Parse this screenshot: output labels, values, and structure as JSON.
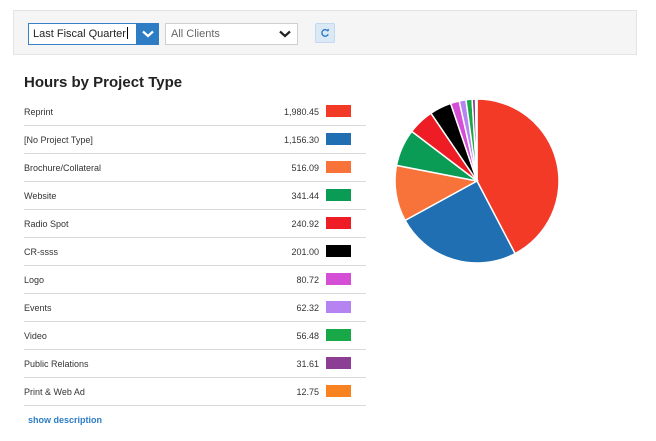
{
  "filters": {
    "period_value": "Last Fiscal Quarter",
    "clients_value": "All Clients"
  },
  "title": "Hours by Project Type",
  "show_description": "show description",
  "chart_data": {
    "type": "pie",
    "title": "Hours by Project Type",
    "categories": [
      "Reprint",
      "[No Project Type]",
      "Brochure/Collateral",
      "Website",
      "Radio Spot",
      "CR-ssss",
      "Logo",
      "Events",
      "Video",
      "Public Relations",
      "Print & Web Ad"
    ],
    "values_text": [
      "1,980.45",
      "1,156.30",
      "516.09",
      "341.44",
      "240.92",
      "201.00",
      "80.72",
      "62.32",
      "56.48",
      "31.61",
      "12.75"
    ],
    "values": [
      1980.45,
      1156.3,
      516.09,
      341.44,
      240.92,
      201.0,
      80.72,
      62.32,
      56.48,
      31.61,
      12.75
    ],
    "colors": [
      "#f23a27",
      "#1f6fb2",
      "#f7733a",
      "#0a9b55",
      "#ee1c24",
      "#000000",
      "#d44fd6",
      "#b684f0",
      "#18a848",
      "#8c3d94",
      "#f7821f"
    ]
  }
}
